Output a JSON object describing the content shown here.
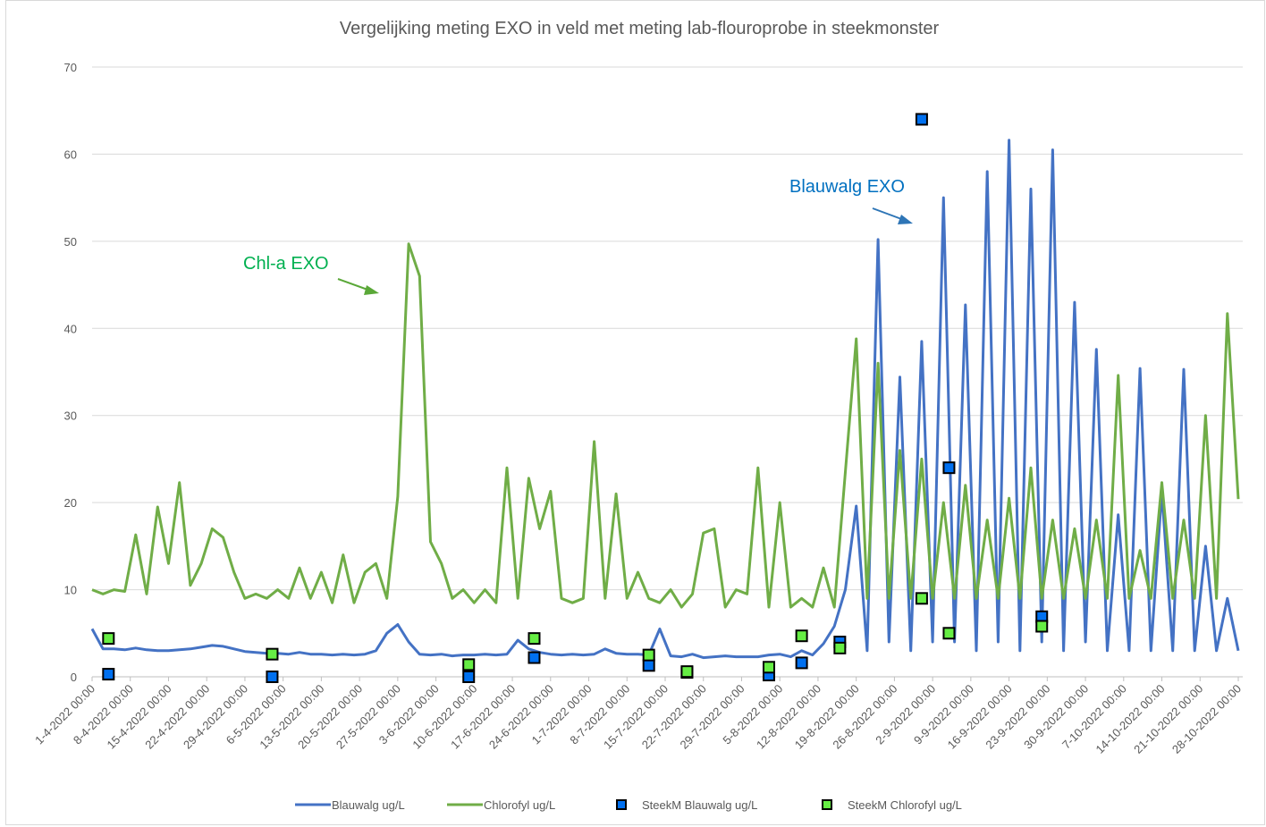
{
  "chart_data": {
    "type": "line",
    "title": "Vergelijking meting EXO in veld met meting lab-flouroprobe in steekmonster",
    "xlim": [
      "1-4-2022 00:00",
      "28-10-2022 00:00"
    ],
    "xticks": [
      "1-4-2022 00:00",
      "8-4-2022 00:00",
      "15-4-2022 00:00",
      "22-4-2022 00:00",
      "29-4-2022 00:00",
      "6-5-2022 00:00",
      "13-5-2022 00:00",
      "20-5-2022 00:00",
      "27-5-2022 00:00",
      "3-6-2022 00:00",
      "10-6-2022 00:00",
      "17-6-2022 00:00",
      "24-6-2022 00:00",
      "1-7-2022 00:00",
      "8-7-2022 00:00",
      "15-7-2022 00:00",
      "22-7-2022 00:00",
      "29-7-2022 00:00",
      "5-8-2022 00:00",
      "12-8-2022 00:00",
      "19-8-2022 00:00",
      "26-8-2022 00:00",
      "2-9-2022 00:00",
      "9-9-2022 00:00",
      "16-9-2022 00:00",
      "23-9-2022 00:00",
      "30-9-2022 00:00",
      "7-10-2022 00:00",
      "14-10-2022 00:00",
      "21-10-2022 00:00",
      "28-10-2022 00:00"
    ],
    "ylim": [
      0,
      70
    ],
    "yticks": [
      0,
      10,
      20,
      30,
      40,
      50,
      60,
      70
    ],
    "grid": true,
    "legend": "bottom",
    "annotations": [
      {
        "text": "Chl-a EXO",
        "color": "#00b050"
      },
      {
        "text": "Blauwalg EXO",
        "color": "#0070c0"
      }
    ],
    "series": [
      {
        "name": "Blauwalg ug/L",
        "type": "line",
        "color": "#4472c4",
        "x": [
          "1-4-2022 00:00",
          "3-4-2022 00:00",
          "5-4-2022 00:00",
          "7-4-2022 00:00",
          "9-4-2022 00:00",
          "11-4-2022 00:00",
          "13-4-2022 00:00",
          "15-4-2022 00:00",
          "17-4-2022 00:00",
          "19-4-2022 00:00",
          "21-4-2022 00:00",
          "23-4-2022 00:00",
          "25-4-2022 00:00",
          "27-4-2022 00:00",
          "29-4-2022 00:00",
          "1-5-2022 00:00",
          "3-5-2022 00:00",
          "5-5-2022 00:00",
          "7-5-2022 00:00",
          "9-5-2022 00:00",
          "11-5-2022 00:00",
          "13-5-2022 00:00",
          "15-5-2022 00:00",
          "17-5-2022 00:00",
          "19-5-2022 00:00",
          "21-5-2022 00:00",
          "23-5-2022 00:00",
          "25-5-2022 00:00",
          "27-5-2022 00:00",
          "29-5-2022 00:00",
          "31-5-2022 00:00",
          "2-6-2022 00:00",
          "4-6-2022 00:00",
          "6-6-2022 00:00",
          "8-6-2022 00:00",
          "10-6-2022 00:00",
          "12-6-2022 00:00",
          "14-6-2022 00:00",
          "16-6-2022 00:00",
          "18-6-2022 00:00",
          "20-6-2022 00:00",
          "22-6-2022 00:00",
          "24-6-2022 00:00",
          "26-6-2022 00:00",
          "28-6-2022 00:00",
          "30-6-2022 00:00",
          "2-7-2022 00:00",
          "4-7-2022 00:00",
          "6-7-2022 00:00",
          "8-7-2022 00:00",
          "10-7-2022 00:00",
          "12-7-2022 00:00",
          "14-7-2022 00:00",
          "16-7-2022 00:00",
          "18-7-2022 00:00",
          "20-7-2022 00:00",
          "22-7-2022 00:00",
          "24-7-2022 00:00",
          "26-7-2022 00:00",
          "28-7-2022 00:00",
          "30-7-2022 00:00",
          "1-8-2022 00:00",
          "3-8-2022 00:00",
          "5-8-2022 00:00",
          "7-8-2022 00:00",
          "9-8-2022 00:00",
          "11-8-2022 00:00",
          "13-8-2022 00:00",
          "15-8-2022 00:00",
          "17-8-2022 00:00",
          "19-8-2022 00:00",
          "21-8-2022 00:00",
          "23-8-2022 00:00",
          "25-8-2022 00:00",
          "27-8-2022 00:00",
          "29-8-2022 00:00",
          "31-8-2022 00:00",
          "2-9-2022 00:00",
          "4-9-2022 00:00",
          "6-9-2022 00:00",
          "8-9-2022 00:00",
          "10-9-2022 00:00",
          "12-9-2022 00:00",
          "14-9-2022 00:00",
          "16-9-2022 00:00",
          "18-9-2022 00:00",
          "20-9-2022 00:00",
          "22-9-2022 00:00",
          "24-9-2022 00:00",
          "26-9-2022 00:00",
          "28-9-2022 00:00",
          "30-9-2022 00:00",
          "2-10-2022 00:00",
          "4-10-2022 00:00",
          "6-10-2022 00:00",
          "8-10-2022 00:00",
          "10-10-2022 00:00",
          "12-10-2022 00:00",
          "14-10-2022 00:00",
          "16-10-2022 00:00",
          "18-10-2022 00:00",
          "20-10-2022 00:00",
          "22-10-2022 00:00",
          "24-10-2022 00:00",
          "26-10-2022 00:00",
          "28-10-2022 00:00"
        ],
        "values": [
          5.5,
          3.2,
          3.2,
          3.1,
          3.3,
          3.1,
          3,
          3,
          3.1,
          3.2,
          3.4,
          3.6,
          3.5,
          3.2,
          2.9,
          2.8,
          2.7,
          2.7,
          2.6,
          2.8,
          2.6,
          2.6,
          2.5,
          2.6,
          2.5,
          2.6,
          3,
          5,
          6,
          4,
          2.6,
          2.5,
          2.6,
          2.4,
          2.5,
          2.5,
          2.6,
          2.5,
          2.6,
          4.2,
          3.2,
          2.8,
          2.6,
          2.5,
          2.6,
          2.5,
          2.6,
          3.2,
          2.7,
          2.6,
          2.6,
          2.5,
          5.5,
          2.4,
          2.3,
          2.6,
          2.2,
          2.3,
          2.4,
          2.3,
          2.3,
          2.3,
          2.5,
          2.6,
          2.3,
          3,
          2.5,
          3.8,
          5.8,
          10,
          19.6,
          3,
          50.2,
          4,
          34.4,
          3,
          38.5,
          4,
          55,
          4,
          42.7,
          3,
          58,
          4,
          61.6,
          3,
          56,
          4,
          60.5,
          3,
          43,
          4,
          37.6,
          3,
          18.6,
          3,
          35.4,
          3,
          21.3,
          3,
          35.3,
          3,
          15,
          3,
          9,
          3
        ]
      },
      {
        "name": "Chlorofyl ug/L",
        "type": "line",
        "color": "#70ad47",
        "x": [
          "1-4-2022 00:00",
          "3-4-2022 00:00",
          "5-4-2022 00:00",
          "7-4-2022 00:00",
          "9-4-2022 00:00",
          "11-4-2022 00:00",
          "13-4-2022 00:00",
          "15-4-2022 00:00",
          "17-4-2022 00:00",
          "19-4-2022 00:00",
          "21-4-2022 00:00",
          "23-4-2022 00:00",
          "25-4-2022 00:00",
          "27-4-2022 00:00",
          "29-4-2022 00:00",
          "1-5-2022 00:00",
          "3-5-2022 00:00",
          "5-5-2022 00:00",
          "7-5-2022 00:00",
          "9-5-2022 00:00",
          "11-5-2022 00:00",
          "13-5-2022 00:00",
          "15-5-2022 00:00",
          "17-5-2022 00:00",
          "19-5-2022 00:00",
          "21-5-2022 00:00",
          "23-5-2022 00:00",
          "25-5-2022 00:00",
          "27-5-2022 00:00",
          "29-5-2022 00:00",
          "31-5-2022 00:00",
          "2-6-2022 00:00",
          "4-6-2022 00:00",
          "6-6-2022 00:00",
          "8-6-2022 00:00",
          "10-6-2022 00:00",
          "12-6-2022 00:00",
          "14-6-2022 00:00",
          "16-6-2022 00:00",
          "18-6-2022 00:00",
          "20-6-2022 00:00",
          "22-6-2022 00:00",
          "24-6-2022 00:00",
          "26-6-2022 00:00",
          "28-6-2022 00:00",
          "30-6-2022 00:00",
          "2-7-2022 00:00",
          "4-7-2022 00:00",
          "6-7-2022 00:00",
          "8-7-2022 00:00",
          "10-7-2022 00:00",
          "12-7-2022 00:00",
          "14-7-2022 00:00",
          "16-7-2022 00:00",
          "18-7-2022 00:00",
          "20-7-2022 00:00",
          "22-7-2022 00:00",
          "24-7-2022 00:00",
          "26-7-2022 00:00",
          "28-7-2022 00:00",
          "30-7-2022 00:00",
          "1-8-2022 00:00",
          "3-8-2022 00:00",
          "5-8-2022 00:00",
          "7-8-2022 00:00",
          "9-8-2022 00:00",
          "11-8-2022 00:00",
          "13-8-2022 00:00",
          "15-8-2022 00:00",
          "17-8-2022 00:00",
          "19-8-2022 00:00",
          "21-8-2022 00:00",
          "23-8-2022 00:00",
          "25-8-2022 00:00",
          "27-8-2022 00:00",
          "29-8-2022 00:00",
          "31-8-2022 00:00",
          "2-9-2022 00:00",
          "4-9-2022 00:00",
          "6-9-2022 00:00",
          "8-9-2022 00:00",
          "10-9-2022 00:00",
          "12-9-2022 00:00",
          "14-9-2022 00:00",
          "16-9-2022 00:00",
          "18-9-2022 00:00",
          "20-9-2022 00:00",
          "22-9-2022 00:00",
          "24-9-2022 00:00",
          "26-9-2022 00:00",
          "28-9-2022 00:00",
          "30-9-2022 00:00",
          "2-10-2022 00:00",
          "4-10-2022 00:00",
          "6-10-2022 00:00",
          "8-10-2022 00:00",
          "10-10-2022 00:00",
          "12-10-2022 00:00",
          "14-10-2022 00:00",
          "16-10-2022 00:00",
          "18-10-2022 00:00",
          "20-10-2022 00:00",
          "22-10-2022 00:00",
          "24-10-2022 00:00",
          "26-10-2022 00:00",
          "28-10-2022 00:00"
        ],
        "values": [
          10,
          9.5,
          10,
          9.8,
          16.3,
          9.5,
          19.5,
          13,
          22.3,
          10.5,
          13,
          17,
          16,
          12,
          9,
          9.5,
          9,
          10,
          9,
          12.5,
          9,
          12,
          8.5,
          14,
          8.5,
          12,
          13,
          9,
          20.7,
          49.7,
          46,
          15.5,
          13,
          9,
          10,
          8.5,
          10,
          8.5,
          24,
          9,
          22.8,
          17,
          21.3,
          9,
          8.5,
          9,
          27,
          9,
          21,
          9,
          12,
          9,
          8.5,
          10,
          8,
          9.5,
          16.5,
          17,
          8,
          10,
          9.5,
          24,
          8,
          20,
          8,
          9,
          8,
          12.5,
          8,
          23.5,
          38.8,
          9,
          36,
          9,
          26,
          9,
          25,
          9,
          20,
          9,
          22,
          9,
          18,
          9,
          20.5,
          9,
          24,
          9,
          18,
          9,
          17,
          9,
          18,
          9,
          34.6,
          9,
          14.5,
          9,
          22.3,
          9,
          18,
          9,
          30,
          9,
          41.7,
          20.4
        ]
      },
      {
        "name": "SteekM Blauwalg ug/L",
        "type": "scatter",
        "color": "#0070f0",
        "x": [
          "4-4-2022 00:00",
          "4-5-2022 00:00",
          "9-6-2022 00:00",
          "21-6-2022 00:00",
          "12-7-2022 00:00",
          "19-7-2022 00:00",
          "3-8-2022 00:00",
          "9-8-2022 00:00",
          "16-8-2022 00:00",
          "31-8-2022 00:00",
          "5-9-2022 00:00",
          "22-9-2022 00:00"
        ],
        "values": [
          0.3,
          0,
          0,
          2.2,
          1.3,
          0.5,
          0.2,
          1.6,
          4,
          64,
          24,
          6.9
        ]
      },
      {
        "name": "SteekM Chlorofyl ug/L",
        "type": "scatter",
        "color": "#66ee44",
        "x": [
          "4-4-2022 00:00",
          "4-5-2022 00:00",
          "9-6-2022 00:00",
          "21-6-2022 00:00",
          "12-7-2022 00:00",
          "19-7-2022 00:00",
          "3-8-2022 00:00",
          "9-8-2022 00:00",
          "16-8-2022 00:00",
          "31-8-2022 00:00",
          "5-9-2022 00:00",
          "22-9-2022 00:00"
        ],
        "values": [
          4.4,
          2.6,
          1.4,
          4.4,
          2.5,
          0.6,
          1.1,
          4.7,
          3.3,
          9,
          5,
          5.8
        ]
      }
    ]
  }
}
